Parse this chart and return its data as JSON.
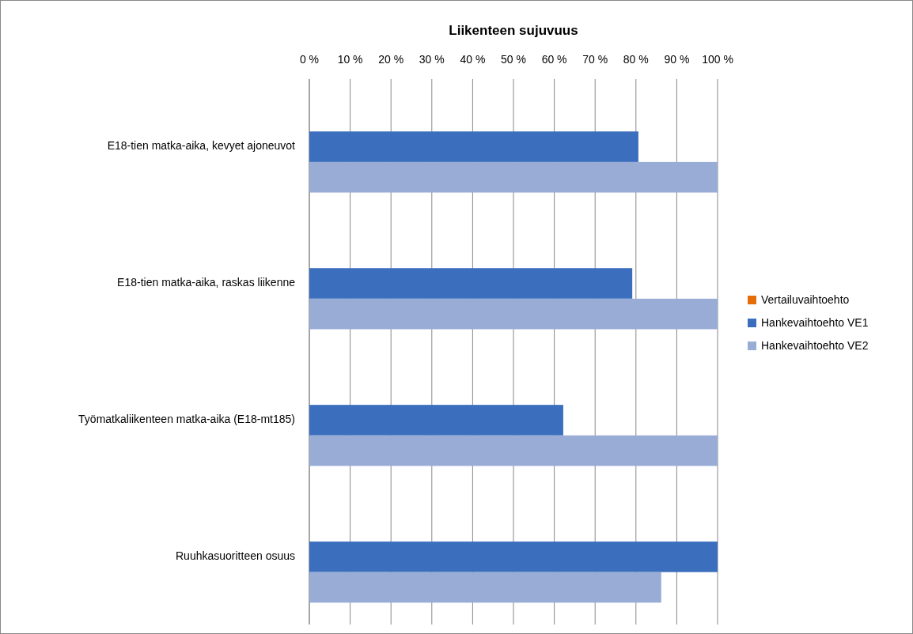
{
  "chart_data": {
    "type": "bar",
    "orientation": "horizontal",
    "title": "Liikenteen sujuvuus",
    "categories": [
      "E18-tien matka-aika, kevyet ajoneuvot",
      "E18-tien matka-aika, raskas liikenne",
      "Työmatkaliikenteen matka-aika (E18-mt185)",
      "Ruuhkasuoritteen osuus"
    ],
    "series": [
      {
        "name": "Vertailuvaihtoehto",
        "color": "#e46c0a",
        "values": [
          0,
          0,
          0,
          0
        ]
      },
      {
        "name": "Hankevaihtoehto VE1",
        "color": "#3b6fbe",
        "values": [
          80.6,
          79.1,
          62.2,
          100
        ]
      },
      {
        "name": "Hankevaihtoehto VE2",
        "color": "#98acd6",
        "values": [
          100,
          100,
          100,
          86.2
        ]
      }
    ],
    "xlim": [
      0,
      100
    ],
    "xticks": [
      {
        "value": 0,
        "label": "0 %"
      },
      {
        "value": 10,
        "label": "10 %"
      },
      {
        "value": 20,
        "label": "20 %"
      },
      {
        "value": 30,
        "label": "30 %"
      },
      {
        "value": 40,
        "label": "40 %"
      },
      {
        "value": 50,
        "label": "50 %"
      },
      {
        "value": 60,
        "label": "60 %"
      },
      {
        "value": 70,
        "label": "70 %"
      },
      {
        "value": 80,
        "label": "80 %"
      },
      {
        "value": 90,
        "label": "90 %"
      },
      {
        "value": 100,
        "label": "100 %"
      }
    ],
    "grid": "x",
    "legend": "right"
  }
}
